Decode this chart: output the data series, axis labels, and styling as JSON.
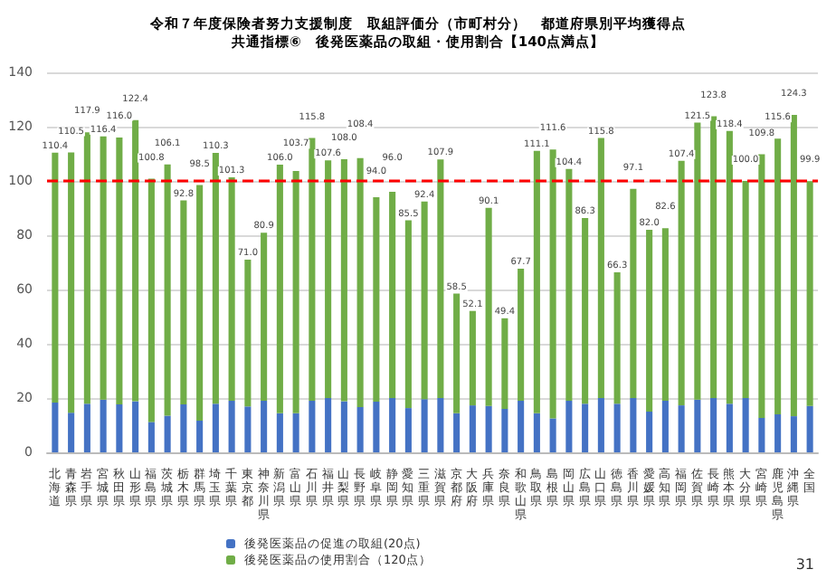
{
  "chart_data": {
    "type": "bar",
    "stacked": true,
    "title": "令和７年度保険者努力支援制度　取組評価分（市町村分）　都道府県別平均獲得点",
    "subtitle": "共通指標⑥　後発医薬品の取組・使用割合【140点満点】",
    "categories": [
      "北海道",
      "青森県",
      "岩手県",
      "宮城県",
      "秋田県",
      "山形県",
      "福島県",
      "茨城県",
      "栃木県",
      "群馬県",
      "埼玉県",
      "千葉県",
      "東京都",
      "神奈川県",
      "新潟県",
      "富山県",
      "石川県",
      "福井県",
      "山梨県",
      "長野県",
      "岐阜県",
      "静岡県",
      "愛知県",
      "三重県",
      "滋賀県",
      "京都府",
      "大阪府",
      "兵庫県",
      "奈良県",
      "和歌山県",
      "鳥取県",
      "島根県",
      "岡山県",
      "広島県",
      "山口県",
      "徳島県",
      "香川県",
      "愛媛県",
      "高知県",
      "福岡県",
      "佐賀県",
      "長崎県",
      "熊本県",
      "大分県",
      "宮崎県",
      "鹿児島県",
      "沖縄県",
      "全国"
    ],
    "series": [
      {
        "name": "後発医薬品の促進の取組(20点)",
        "color": "#4472c4",
        "values": [
          18.3,
          14.6,
          17.9,
          19.4,
          17.7,
          18.8,
          11.2,
          13.5,
          17.7,
          11.7,
          17.9,
          19.0,
          16.9,
          19.0,
          14.4,
          14.4,
          19.0,
          20.0,
          18.8,
          16.7,
          18.7,
          20.0,
          16.3,
          19.6,
          20.0,
          14.4,
          17.3,
          17.1,
          16.0,
          19.0,
          14.4,
          12.5,
          19.0,
          17.9,
          20.0,
          17.9,
          20.0,
          15.0,
          19.0,
          17.3,
          19.4,
          20.0,
          17.9,
          20.0,
          12.7,
          14.0,
          13.3,
          17.1
        ]
      },
      {
        "name": "後発医薬品の使用割合（120点）",
        "color": "#70ad47",
        "values": [
          92.1,
          95.9,
          100.0,
          97.0,
          98.3,
          103.6,
          89.6,
          92.6,
          75.1,
          86.8,
          92.4,
          82.3,
          54.1,
          61.9,
          91.6,
          89.3,
          96.8,
          87.6,
          89.2,
          91.7,
          75.3,
          76.0,
          69.2,
          72.8,
          87.9,
          44.1,
          34.8,
          73.0,
          33.4,
          48.7,
          96.7,
          99.1,
          85.4,
          68.4,
          95.8,
          48.4,
          77.1,
          67.0,
          63.6,
          90.1,
          102.1,
          103.8,
          100.5,
          80.0,
          97.1,
          101.6,
          111.0,
          82.8
        ]
      }
    ],
    "totals": [
      "110.4",
      "110.5",
      "117.9",
      "116.4",
      "116.0",
      "122.4",
      "100.8",
      "106.1",
      "92.8",
      "98.5",
      "110.3",
      "101.3",
      "71.0",
      "80.9",
      "106.0",
      "103.7",
      "115.8",
      "107.6",
      "108.0",
      "108.4",
      "94.0",
      "96.0",
      "85.5",
      "92.4",
      "107.9",
      "58.5",
      "52.1",
      "90.1",
      "49.4",
      "67.7",
      "111.1",
      "111.6",
      "104.4",
      "86.3",
      "115.8",
      "66.3",
      "97.1",
      "82.0",
      "82.6",
      "107.4",
      "121.5",
      "123.8",
      "118.4",
      "100.0",
      "109.8",
      "115.6",
      "124.3",
      "99.9"
    ],
    "ylim": [
      0,
      140
    ],
    "yticks": [
      0,
      20,
      40,
      60,
      80,
      100,
      120,
      140
    ],
    "grid": "y",
    "legend": "bottom",
    "ref_lines": [
      {
        "axis": "y",
        "value": 100,
        "color": "#ff0000",
        "line_style": "dashed"
      }
    ],
    "annotations": [
      "31"
    ]
  }
}
